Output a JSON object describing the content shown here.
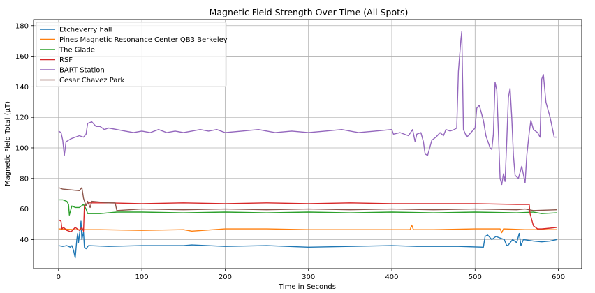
{
  "chart_data": {
    "type": "line",
    "title": "Magnetic Field Strength Over Time (All Spots)",
    "xlabel": "Time in Seconds",
    "ylabel": "Magnetic Field Total (µT)",
    "xlim": [
      -30,
      628
    ],
    "ylim": [
      21,
      184
    ],
    "xticks": [
      0,
      100,
      200,
      300,
      400,
      500,
      600
    ],
    "yticks": [
      40,
      60,
      80,
      100,
      120,
      140,
      160,
      180
    ],
    "grid": true,
    "legend_position": "top-left",
    "series": [
      {
        "name": "Etcheverry hall",
        "color": "#1f77b4",
        "points": [
          [
            0,
            36
          ],
          [
            5,
            35.5
          ],
          [
            10,
            36
          ],
          [
            14,
            35
          ],
          [
            16,
            36
          ],
          [
            18,
            33
          ],
          [
            20,
            28
          ],
          [
            22,
            40
          ],
          [
            23,
            44
          ],
          [
            24,
            38
          ],
          [
            26,
            47
          ],
          [
            27,
            52
          ],
          [
            28,
            40
          ],
          [
            30,
            45
          ],
          [
            31,
            35
          ],
          [
            33,
            34
          ],
          [
            36,
            36
          ],
          [
            60,
            35.5
          ],
          [
            100,
            36
          ],
          [
            150,
            36
          ],
          [
            160,
            36.5
          ],
          [
            200,
            35.5
          ],
          [
            250,
            36
          ],
          [
            300,
            35
          ],
          [
            350,
            35.5
          ],
          [
            400,
            36
          ],
          [
            430,
            35.5
          ],
          [
            480,
            35.5
          ],
          [
            510,
            35
          ],
          [
            512,
            42
          ],
          [
            515,
            43
          ],
          [
            520,
            40
          ],
          [
            525,
            42
          ],
          [
            535,
            40
          ],
          [
            538,
            36
          ],
          [
            540,
            36.5
          ],
          [
            545,
            40
          ],
          [
            550,
            38
          ],
          [
            553,
            44
          ],
          [
            555,
            36
          ],
          [
            558,
            40
          ],
          [
            570,
            39
          ],
          [
            580,
            38.5
          ],
          [
            590,
            39
          ],
          [
            598,
            40
          ]
        ]
      },
      {
        "name": "Pines Magnetic Resonance Center QB3 Berkeley",
        "color": "#ff7f0e",
        "points": [
          [
            0,
            47
          ],
          [
            20,
            46.5
          ],
          [
            50,
            46.5
          ],
          [
            100,
            46
          ],
          [
            150,
            46.5
          ],
          [
            160,
            45.5
          ],
          [
            200,
            47
          ],
          [
            250,
            47
          ],
          [
            300,
            46.5
          ],
          [
            350,
            46.5
          ],
          [
            400,
            46.5
          ],
          [
            422,
            46.5
          ],
          [
            424,
            49.5
          ],
          [
            426,
            46.5
          ],
          [
            450,
            46.5
          ],
          [
            500,
            47
          ],
          [
            530,
            47
          ],
          [
            532,
            44.5
          ],
          [
            534,
            47
          ],
          [
            560,
            46.5
          ],
          [
            580,
            46.5
          ],
          [
            598,
            46.5
          ]
        ]
      },
      {
        "name": "The Glade",
        "color": "#2ca02c",
        "points": [
          [
            0,
            66
          ],
          [
            5,
            66
          ],
          [
            10,
            65
          ],
          [
            12,
            63
          ],
          [
            13,
            56
          ],
          [
            16,
            62
          ],
          [
            20,
            61
          ],
          [
            25,
            61
          ],
          [
            30,
            63
          ],
          [
            33,
            60
          ],
          [
            35,
            57
          ],
          [
            50,
            57
          ],
          [
            70,
            58
          ],
          [
            100,
            58
          ],
          [
            150,
            57.5
          ],
          [
            200,
            58
          ],
          [
            250,
            57.5
          ],
          [
            300,
            58
          ],
          [
            350,
            57.5
          ],
          [
            400,
            58
          ],
          [
            450,
            57.5
          ],
          [
            500,
            58
          ],
          [
            550,
            57.5
          ],
          [
            570,
            58
          ],
          [
            580,
            57
          ],
          [
            598,
            57.5
          ]
        ]
      },
      {
        "name": "RSF",
        "color": "#d62728",
        "points": [
          [
            0,
            53
          ],
          [
            3,
            52
          ],
          [
            4,
            47
          ],
          [
            6,
            48
          ],
          [
            10,
            46
          ],
          [
            15,
            45
          ],
          [
            20,
            48
          ],
          [
            25,
            46
          ],
          [
            28,
            48
          ],
          [
            30,
            45.5
          ],
          [
            31,
            62
          ],
          [
            35,
            64
          ],
          [
            60,
            64
          ],
          [
            100,
            63.5
          ],
          [
            150,
            64
          ],
          [
            200,
            63.5
          ],
          [
            250,
            64
          ],
          [
            300,
            63.5
          ],
          [
            350,
            64
          ],
          [
            400,
            63.5
          ],
          [
            450,
            63.5
          ],
          [
            500,
            63.5
          ],
          [
            550,
            63
          ],
          [
            565,
            63
          ],
          [
            566,
            57
          ],
          [
            570,
            49
          ],
          [
            575,
            47
          ],
          [
            580,
            47
          ],
          [
            590,
            47.5
          ],
          [
            598,
            48
          ]
        ]
      },
      {
        "name": "BART Station",
        "color": "#9467bd",
        "points": [
          [
            0,
            111
          ],
          [
            3,
            110
          ],
          [
            5,
            105
          ],
          [
            7,
            95
          ],
          [
            9,
            104
          ],
          [
            15,
            106
          ],
          [
            20,
            107
          ],
          [
            25,
            108
          ],
          [
            30,
            107
          ],
          [
            33,
            109
          ],
          [
            35,
            116
          ],
          [
            40,
            117
          ],
          [
            45,
            114
          ],
          [
            50,
            114
          ],
          [
            55,
            112
          ],
          [
            60,
            113
          ],
          [
            70,
            112
          ],
          [
            80,
            111
          ],
          [
            90,
            110
          ],
          [
            100,
            111
          ],
          [
            110,
            110
          ],
          [
            120,
            112
          ],
          [
            130,
            110
          ],
          [
            140,
            111
          ],
          [
            150,
            110
          ],
          [
            160,
            111
          ],
          [
            170,
            112
          ],
          [
            180,
            111
          ],
          [
            190,
            112
          ],
          [
            200,
            110
          ],
          [
            220,
            111
          ],
          [
            240,
            112
          ],
          [
            260,
            110
          ],
          [
            280,
            111
          ],
          [
            300,
            110
          ],
          [
            320,
            111
          ],
          [
            340,
            112
          ],
          [
            360,
            110
          ],
          [
            380,
            111
          ],
          [
            400,
            112
          ],
          [
            402,
            109
          ],
          [
            410,
            110
          ],
          [
            420,
            108
          ],
          [
            425,
            112
          ],
          [
            428,
            104
          ],
          [
            430,
            109
          ],
          [
            435,
            110
          ],
          [
            438,
            104
          ],
          [
            440,
            96
          ],
          [
            443,
            95
          ],
          [
            448,
            105
          ],
          [
            453,
            107
          ],
          [
            458,
            110
          ],
          [
            462,
            108
          ],
          [
            465,
            112
          ],
          [
            470,
            111
          ],
          [
            475,
            112
          ],
          [
            478,
            113
          ],
          [
            480,
            150
          ],
          [
            483,
            171
          ],
          [
            484,
            176
          ],
          [
            485,
            145
          ],
          [
            486,
            112
          ],
          [
            490,
            107
          ],
          [
            495,
            110
          ],
          [
            500,
            113
          ],
          [
            502,
            126
          ],
          [
            505,
            128
          ],
          [
            510,
            118
          ],
          [
            513,
            108
          ],
          [
            518,
            100
          ],
          [
            520,
            99
          ],
          [
            522,
            109
          ],
          [
            524,
            143
          ],
          [
            526,
            138
          ],
          [
            528,
            110
          ],
          [
            530,
            80
          ],
          [
            532,
            76
          ],
          [
            534,
            83
          ],
          [
            536,
            78
          ],
          [
            538,
            104
          ],
          [
            540,
            133
          ],
          [
            542,
            139
          ],
          [
            544,
            120
          ],
          [
            546,
            95
          ],
          [
            548,
            82
          ],
          [
            552,
            80
          ],
          [
            556,
            88
          ],
          [
            560,
            77
          ],
          [
            562,
            95
          ],
          [
            565,
            110
          ],
          [
            567,
            118
          ],
          [
            570,
            112
          ],
          [
            575,
            110
          ],
          [
            578,
            107
          ],
          [
            580,
            145
          ],
          [
            582,
            148
          ],
          [
            585,
            130
          ],
          [
            590,
            120
          ],
          [
            595,
            107
          ],
          [
            598,
            107
          ]
        ]
      },
      {
        "name": "Cesar Chavez Park",
        "color": "#8c564b",
        "points": [
          [
            0,
            74
          ],
          [
            5,
            73
          ],
          [
            15,
            72.5
          ],
          [
            25,
            72
          ],
          [
            28,
            74
          ],
          [
            30,
            67
          ],
          [
            33,
            62
          ],
          [
            35,
            65
          ],
          [
            38,
            61
          ],
          [
            40,
            65
          ],
          [
            60,
            64
          ],
          [
            68,
            64
          ],
          [
            70,
            59
          ],
          [
            100,
            60
          ],
          [
            150,
            59.5
          ],
          [
            200,
            60
          ],
          [
            250,
            59.5
          ],
          [
            300,
            60
          ],
          [
            350,
            59.5
          ],
          [
            400,
            60
          ],
          [
            450,
            59.5
          ],
          [
            500,
            60
          ],
          [
            550,
            59.5
          ],
          [
            560,
            60
          ],
          [
            565,
            59.5
          ],
          [
            570,
            59
          ],
          [
            598,
            59.5
          ]
        ]
      }
    ]
  }
}
